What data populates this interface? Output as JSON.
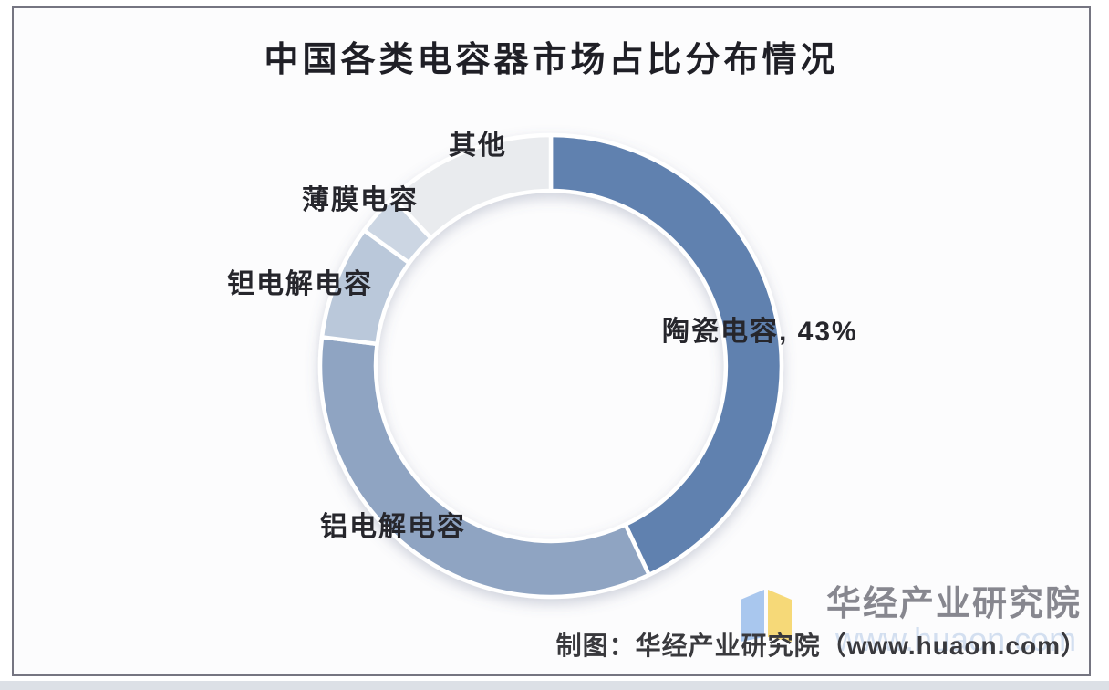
{
  "frame": {
    "border_color": "#757581",
    "background": "#fcfcfd"
  },
  "chart_data": {
    "type": "donut",
    "title": "中国各类电容器市场占比分布情况",
    "categories": [
      "陶瓷电容",
      "铝电解电容",
      "钽电解电容",
      "薄膜电容",
      "其他"
    ],
    "values": [
      43,
      34,
      8,
      3,
      12
    ],
    "unit": "%",
    "colors": [
      "#6081af",
      "#8fa4c2",
      "#bac8da",
      "#ccd6e3",
      "#e9ebee"
    ],
    "start_angle_deg": 0,
    "direction": "clockwise",
    "inner_radius_ratio": 0.76,
    "slice_gap_color": "#ffffff",
    "legend": "none",
    "callouts": [
      {
        "slice": "陶瓷电容",
        "text": "陶瓷电容, 43%"
      },
      {
        "slice": "铝电解电容",
        "text": "铝电解电容"
      },
      {
        "slice": "钽电解电容",
        "text": "钽电解电容"
      },
      {
        "slice": "薄膜电容",
        "text": "薄膜电容"
      },
      {
        "slice": "其他",
        "text": "其他"
      }
    ]
  },
  "branding": {
    "org_name": "华经产业研究院",
    "caption": "制图：华经产业研究院（www.huaon.com）",
    "watermark": "www.huaon.com",
    "logo": {
      "name": "huajing-open-book-logo",
      "left_color": "#a9c7ee",
      "right_color": "#f6d978"
    }
  }
}
